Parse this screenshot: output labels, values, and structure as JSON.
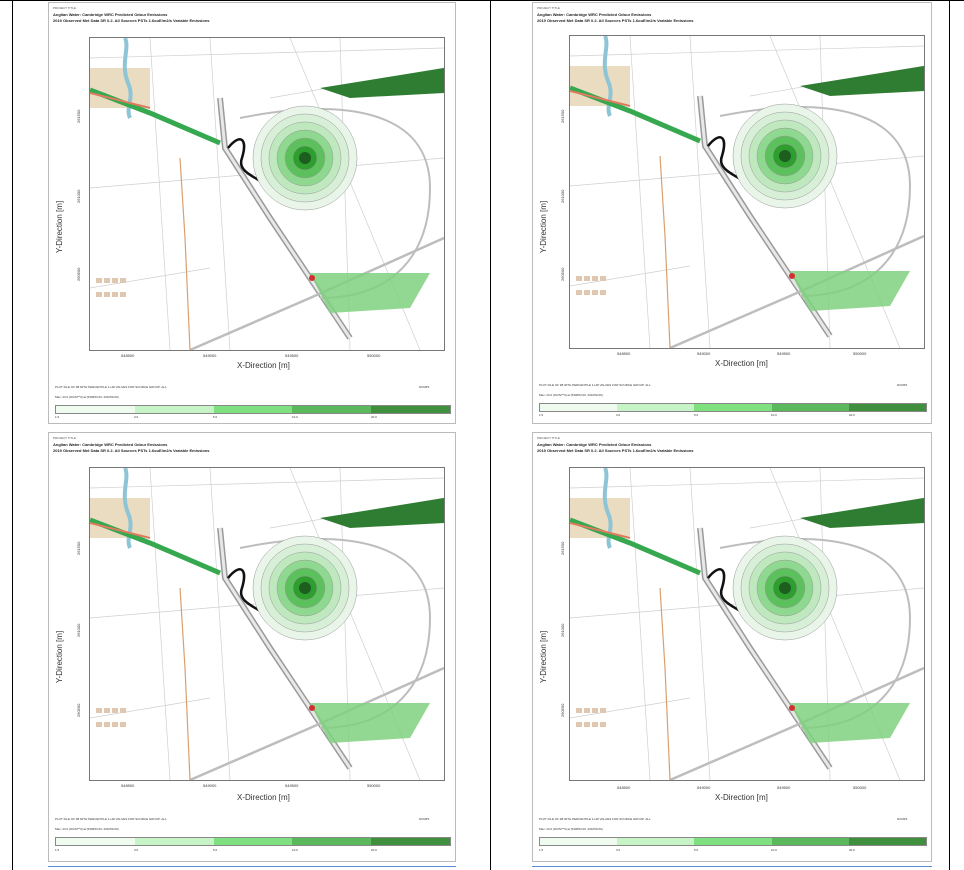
{
  "panels": [
    {
      "project_label": "PROJECT TITLE",
      "title_line1": "Anglian Water: Cambridge WRC Predicted Odour Emissions",
      "title_line2": "2019 Observed Met Data SR 0.2. All Sources PSTs 1.6ouE/m2/s Variable Emissions",
      "y_axis_label": "Y-Direction [m]",
      "x_axis_label": "X-Direction [m]",
      "y_ticks": [
        "261500",
        "261000",
        "260500"
      ],
      "x_ticks": [
        "548500",
        "549000",
        "549500",
        "550000"
      ],
      "plot_file_text": "PLOT FILE OF 98.00TH PERCENTILE 1-HR VALUES FOR SOURCE GROUP: ALL",
      "max_text": "Max: 23.0 [OU/M**3] at (549653.06, 261059.00)",
      "dump_tag": "DUMP1",
      "legend_values": [
        "1.5",
        "3.0",
        "5.0",
        "10.0",
        "20.0"
      ]
    },
    {
      "project_label": "PROJECT TITLE",
      "title_line1": "Anglian Water: Cambridge WRC Predicted Odour Emissions",
      "title_line2": "2019 Observed Met Data SR 0.2. All Sources PSTs 1.6ouE/m2/s Variable Emissions",
      "y_axis_label": "Y-Direction [m]",
      "x_axis_label": "X-Direction [m]",
      "y_ticks": [
        "261500",
        "261000",
        "260500"
      ],
      "x_ticks": [
        "548500",
        "549000",
        "549500",
        "550000"
      ],
      "plot_file_text": "PLOT FILE OF 98.00TH PERCENTILE 1-HR VALUES FOR SOURCE GROUP: ALL",
      "max_text": "Max: 23.0 [OU/M**3] at (549653.06, 261059.00)",
      "dump_tag": "DUMP1",
      "legend_values": [
        "1.5",
        "3.0",
        "5.0",
        "10.0",
        "20.0"
      ]
    },
    {
      "project_label": "PROJECT TITLE",
      "title_line1": "Anglian Water: Cambridge WRC Predicted Odour Emissions",
      "title_line2": "2019 Observed Met Data SR 0.2. All Sources PSTs 1.6ouE/m2/s Variable Emissions",
      "y_axis_label": "Y-Direction [m]",
      "x_axis_label": "X-Direction [m]",
      "y_ticks": [
        "261500",
        "261000",
        "260500"
      ],
      "x_ticks": [
        "548500",
        "549000",
        "549500",
        "550000"
      ],
      "plot_file_text": "PLOT FILE OF 98.00TH PERCENTILE 1-HR VALUES FOR SOURCE GROUP: ALL",
      "max_text": "Max: 23.0 [OU/M**3] at (549653.06, 261059.00)",
      "dump_tag": "DUMP1",
      "legend_values": [
        "1.5",
        "3.0",
        "5.0",
        "10.0",
        "20.0"
      ]
    },
    {
      "project_label": "PROJECT TITLE",
      "title_line1": "Anglian Water: Cambridge WRC Predicted Odour Emissions",
      "title_line2": "2019 Observed Met Data SR 0.2. All Sources PSTs 1.6ouE/m2/s Variable Emissions",
      "y_axis_label": "Y-Direction [m]",
      "x_axis_label": "X-Direction [m]",
      "y_ticks": [
        "261500",
        "261000",
        "260500"
      ],
      "x_ticks": [
        "548500",
        "549000",
        "549500",
        "550000"
      ],
      "plot_file_text": "PLOT FILE OF 98.00TH PERCENTILE 1-HR VALUES FOR SOURCE GROUP: ALL",
      "max_text": "Max: 23.0 [OU/M**3] at (549653.06, 261059.00)",
      "dump_tag": "DUMP1",
      "legend_values": [
        "1.5",
        "3.0",
        "5.0",
        "10.0",
        "20.0"
      ]
    }
  ],
  "legend_colors": [
    "#eefbee",
    "#c6f4c6",
    "#7fe07f",
    "#5cb85c",
    "#3f8f3f"
  ],
  "map_colors": {
    "water": "#8ec5d6",
    "road": "#9a9a9a",
    "vegetation": "#2e7d32",
    "field": "#7fd07f",
    "contour_core": "#2e9e2e",
    "pipeline": "#111111",
    "beige": "#e9dcc0"
  }
}
